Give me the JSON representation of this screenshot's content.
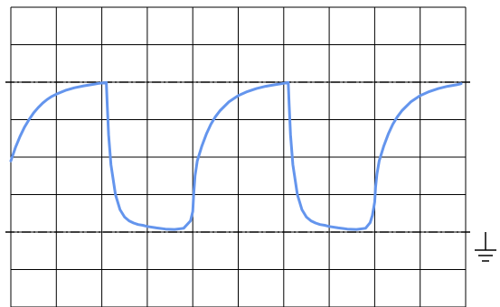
{
  "chart_data": {
    "type": "line",
    "title": "",
    "xlabel": "",
    "ylabel": "",
    "grid": true,
    "grid_divisions": {
      "x": 10,
      "y": 8
    },
    "xlim": [
      0,
      10
    ],
    "ylim": [
      0,
      8
    ],
    "reference_lines": [
      {
        "kind": "upper-level",
        "y": 6.0,
        "style": "dash-dot"
      },
      {
        "kind": "ground-level",
        "y": 2.0,
        "style": "dash-dot"
      }
    ],
    "ground_symbol": true,
    "series": [
      {
        "color": "#6495ED",
        "x": [
          0.0,
          0.1,
          0.2,
          0.3,
          0.4,
          0.5,
          0.6,
          0.7,
          0.8,
          0.9,
          1.0,
          1.2,
          1.4,
          1.6,
          1.8,
          1.95,
          2.1,
          2.12,
          2.15,
          2.2,
          2.3,
          2.4,
          2.5,
          2.6,
          2.7,
          2.8,
          2.9,
          3.0,
          3.2,
          3.4,
          3.6,
          3.8,
          3.95,
          4.0,
          4.02,
          4.05,
          4.1,
          4.2,
          4.3,
          4.4,
          4.5,
          4.6,
          4.8,
          5.0,
          5.2,
          5.4,
          5.6,
          5.8,
          5.95,
          6.1,
          6.12,
          6.15,
          6.2,
          6.3,
          6.4,
          6.5,
          6.6,
          6.7,
          6.8,
          6.9,
          7.0,
          7.2,
          7.4,
          7.6,
          7.8,
          7.9,
          7.95,
          8.0,
          8.02,
          8.05,
          8.1,
          8.2,
          8.3,
          8.4,
          8.5,
          8.6,
          8.8,
          9.0,
          9.2,
          9.4,
          9.6,
          9.8,
          9.9
        ],
        "y": [
          3.9,
          4.25,
          4.55,
          4.8,
          5.0,
          5.18,
          5.32,
          5.44,
          5.54,
          5.62,
          5.68,
          5.78,
          5.85,
          5.9,
          5.94,
          5.97,
          5.99,
          5.4,
          4.6,
          3.8,
          3.0,
          2.6,
          2.4,
          2.3,
          2.24,
          2.2,
          2.18,
          2.15,
          2.11,
          2.08,
          2.07,
          2.1,
          2.3,
          2.55,
          3.0,
          3.5,
          3.9,
          4.3,
          4.62,
          4.88,
          5.08,
          5.24,
          5.48,
          5.64,
          5.75,
          5.83,
          5.89,
          5.93,
          5.96,
          5.99,
          5.4,
          4.6,
          3.8,
          3.0,
          2.6,
          2.4,
          2.3,
          2.24,
          2.2,
          2.18,
          2.15,
          2.11,
          2.08,
          2.07,
          2.1,
          2.25,
          2.45,
          2.8,
          3.2,
          3.55,
          3.9,
          4.3,
          4.62,
          4.88,
          5.08,
          5.24,
          5.48,
          5.64,
          5.75,
          5.83,
          5.89,
          5.93,
          5.96
        ]
      }
    ]
  }
}
